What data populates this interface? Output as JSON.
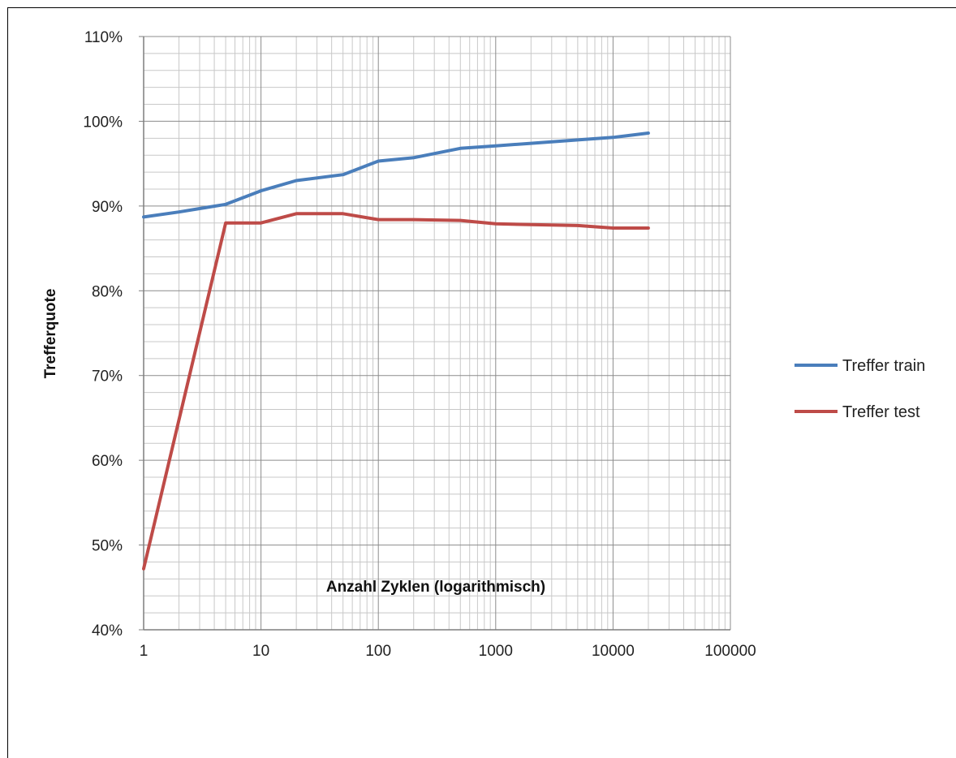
{
  "chart_data": {
    "type": "line",
    "title": "",
    "xlabel": "Anzahl Zyklen (logarithmisch)",
    "ylabel": "Trefferquote",
    "x_scale": "log",
    "xlim": [
      1,
      100000
    ],
    "ylim": [
      0.4,
      1.1
    ],
    "x_ticks": [
      1,
      10,
      100,
      1000,
      10000,
      100000
    ],
    "x_tick_labels": [
      "1",
      "10",
      "100",
      "1000",
      "10000",
      "100000"
    ],
    "y_ticks": [
      0.4,
      0.5,
      0.6,
      0.7,
      0.8,
      0.9,
      1.0,
      1.1
    ],
    "y_tick_labels": [
      "40%",
      "50%",
      "60%",
      "70%",
      "80%",
      "90%",
      "100%",
      "110%"
    ],
    "grid": true,
    "legend_position": "right",
    "series": [
      {
        "name": "Treffer train",
        "color": "#4a7ebb",
        "x": [
          1,
          2,
          3,
          5,
          10,
          20,
          50,
          100,
          200,
          500,
          1000,
          2000,
          5000,
          10000,
          20000
        ],
        "y": [
          0.887,
          0.893,
          0.897,
          0.902,
          0.918,
          0.93,
          0.937,
          0.953,
          0.957,
          0.968,
          0.971,
          0.974,
          0.978,
          0.981,
          0.986
        ]
      },
      {
        "name": "Treffer test",
        "color": "#be4b48",
        "x": [
          1,
          5,
          10,
          20,
          50,
          100,
          200,
          500,
          1000,
          2000,
          5000,
          10000,
          20000
        ],
        "y": [
          0.472,
          0.88,
          0.88,
          0.891,
          0.891,
          0.884,
          0.884,
          0.883,
          0.879,
          0.878,
          0.877,
          0.874,
          0.874
        ]
      }
    ]
  }
}
